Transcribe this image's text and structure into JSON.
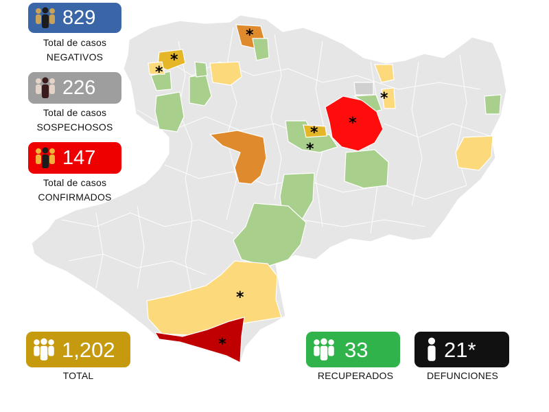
{
  "stats": {
    "negativos": {
      "value": "829",
      "line1": "Total de casos",
      "line2": "NEGATIVOS",
      "color": "#3a66a8"
    },
    "sospechosos": {
      "value": "226",
      "line1": "Total de casos",
      "line2": "SOSPECHOSOS",
      "color": "#9e9e9e"
    },
    "confirmados": {
      "value": "147",
      "line1": "Total de casos",
      "line2": "CONFIRMADOS",
      "color": "#ee0000"
    },
    "total": {
      "value": "1,202",
      "label": "TOTAL",
      "color": "#c59a0e"
    },
    "recuperados": {
      "value": "33",
      "label": "RECUPERADOS",
      "color": "#2fb34a"
    },
    "defunciones": {
      "value": "21*",
      "label": "DEFUNCIONES",
      "color": "#111111"
    }
  },
  "legend_colors": {
    "base": "#e6e6e6",
    "green": "#a9cf8c",
    "light_yellow": "#fcd97a",
    "yellow": "#e5b627",
    "orange": "#df8a2d",
    "red": "#ff0d0d",
    "dark_red": "#c00000"
  },
  "icons": {
    "people": "people-group-icon",
    "person": "person-icon"
  }
}
